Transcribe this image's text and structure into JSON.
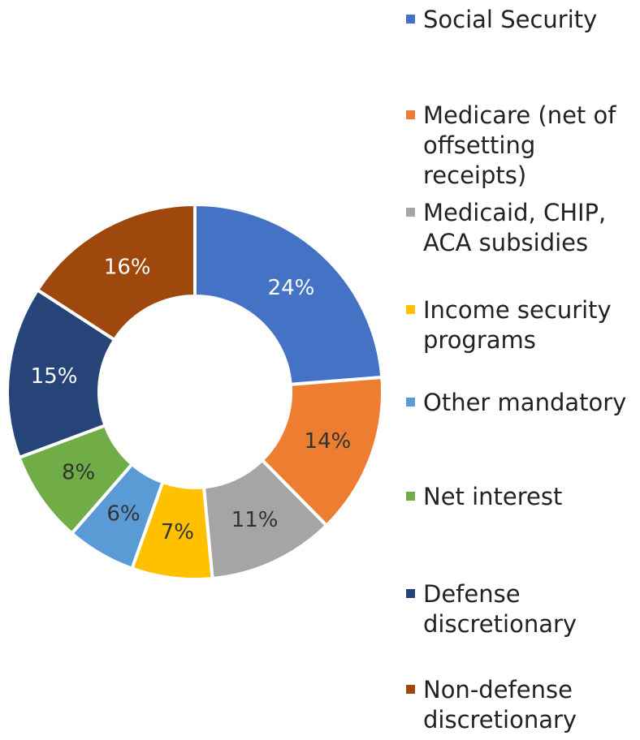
{
  "chart_data": {
    "type": "pie",
    "donut": true,
    "legend_position": "right",
    "slices": [
      {
        "name": "Social Security",
        "value": 24,
        "label": "24%",
        "color": "#4472C4",
        "label_color": "#ffffff"
      },
      {
        "name": "Medicare (net of offsetting receipts)",
        "value": 14,
        "label": "14%",
        "color": "#ED7D31",
        "label_color": "#333333"
      },
      {
        "name": "Medicaid, CHIP, ACA subsidies",
        "value": 11,
        "label": "11%",
        "color": "#A5A5A5",
        "label_color": "#333333"
      },
      {
        "name": "Income security programs",
        "value": 7,
        "label": "7%",
        "color": "#FFC000",
        "label_color": "#333333"
      },
      {
        "name": "Other mandatory",
        "value": 6,
        "label": "6%",
        "color": "#5B9BD5",
        "label_color": "#333333"
      },
      {
        "name": "Net interest",
        "value": 8,
        "label": "8%",
        "color": "#70AD47",
        "label_color": "#333333"
      },
      {
        "name": "Defense discretionary",
        "value": 15,
        "label": "15%",
        "color": "#264478",
        "label_color": "#ffffff"
      },
      {
        "name": "Non-defense discretionary",
        "value": 16,
        "label": "16%",
        "color": "#9E480E",
        "label_color": "#ffffff"
      }
    ]
  }
}
